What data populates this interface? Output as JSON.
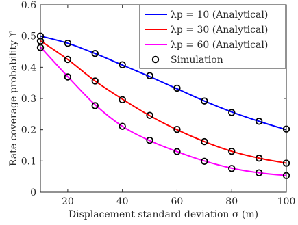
{
  "chart_data": {
    "type": "line",
    "xlabel": "Displacement standard deviation σ (m)",
    "ylabel": "Rate coverage probability ϒ",
    "xlim": [
      10,
      100
    ],
    "ylim": [
      0,
      0.6
    ],
    "xticks": [
      20,
      40,
      60,
      80,
      100
    ],
    "yticks": [
      0,
      0.1,
      0.2,
      0.3,
      0.4,
      0.5,
      0.6
    ],
    "grid": false,
    "legend_position": "top-right",
    "series": [
      {
        "name": "λp = 10 (Analytical)",
        "color": "#0000ff",
        "style": "line",
        "x": [
          10,
          20,
          30,
          40,
          50,
          60,
          70,
          80,
          90,
          100
        ],
        "values": [
          0.5,
          0.477,
          0.444,
          0.407,
          0.37,
          0.331,
          0.292,
          0.257,
          0.227,
          0.2
        ]
      },
      {
        "name": "λp = 30 (Analytical)",
        "color": "#ff0000",
        "style": "line",
        "x": [
          10,
          20,
          30,
          40,
          50,
          60,
          70,
          80,
          90,
          100
        ],
        "values": [
          0.485,
          0.425,
          0.356,
          0.298,
          0.245,
          0.2,
          0.162,
          0.131,
          0.109,
          0.093
        ]
      },
      {
        "name": "λp = 60 (Analytical)",
        "color": "#ff00ff",
        "style": "line",
        "x": [
          10,
          20,
          30,
          40,
          50,
          60,
          70,
          80,
          90,
          100
        ],
        "values": [
          0.465,
          0.37,
          0.28,
          0.211,
          0.165,
          0.13,
          0.1,
          0.077,
          0.062,
          0.053
        ]
      },
      {
        "name": "Simulation",
        "color": "#000000",
        "style": "markers",
        "marker": "circle",
        "points": [
          [
            10,
            0.5
          ],
          [
            20,
            0.477
          ],
          [
            30,
            0.444
          ],
          [
            40,
            0.408
          ],
          [
            50,
            0.373
          ],
          [
            60,
            0.333
          ],
          [
            70,
            0.292
          ],
          [
            80,
            0.255
          ],
          [
            90,
            0.227
          ],
          [
            100,
            0.202
          ],
          [
            10,
            0.484
          ],
          [
            20,
            0.425
          ],
          [
            30,
            0.356
          ],
          [
            40,
            0.296
          ],
          [
            50,
            0.246
          ],
          [
            60,
            0.201
          ],
          [
            70,
            0.162
          ],
          [
            80,
            0.131
          ],
          [
            90,
            0.109
          ],
          [
            100,
            0.093
          ],
          [
            10,
            0.463
          ],
          [
            20,
            0.369
          ],
          [
            30,
            0.277
          ],
          [
            40,
            0.211
          ],
          [
            50,
            0.166
          ],
          [
            60,
            0.13
          ],
          [
            70,
            0.099
          ],
          [
            80,
            0.076
          ],
          [
            90,
            0.062
          ],
          [
            100,
            0.053
          ]
        ]
      }
    ]
  }
}
